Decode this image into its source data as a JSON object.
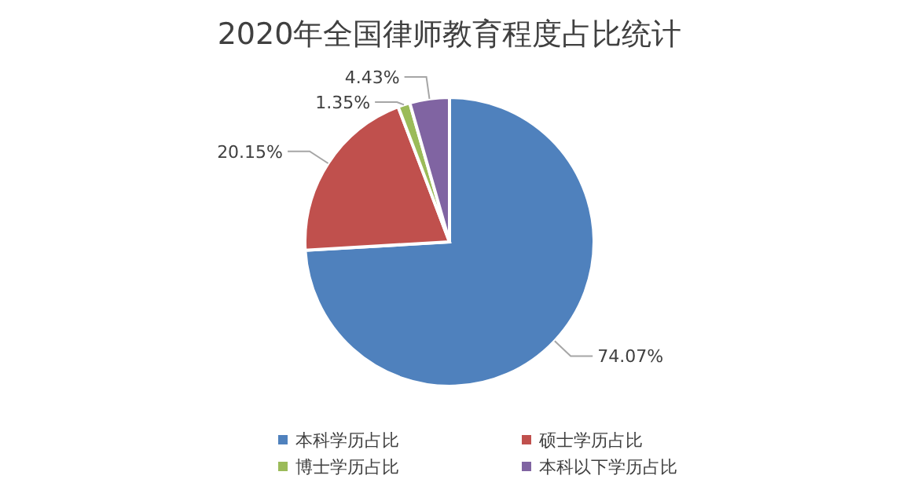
{
  "chart_data": {
    "type": "pie",
    "title": "2020年全国律师教育程度占比统计",
    "categories": [
      "本科学历占比",
      "硕士学历占比",
      "博士学历占比",
      "本科以下学历占比"
    ],
    "values": [
      74.07,
      20.15,
      1.35,
      4.43
    ],
    "colors": [
      "#4f81bd",
      "#c0504d",
      "#9bbb59",
      "#8064a2"
    ],
    "value_labels": [
      "74.07%",
      "20.15%",
      "1.35%",
      "4.43%"
    ],
    "legend": "bottom"
  }
}
